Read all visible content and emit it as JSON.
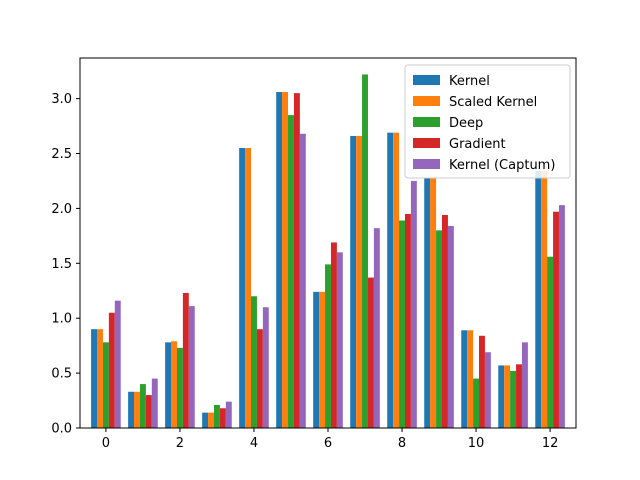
{
  "chart_data": {
    "type": "bar",
    "title": "",
    "xlabel": "",
    "ylabel": "",
    "categories": [
      0,
      1,
      2,
      3,
      4,
      5,
      6,
      7,
      8,
      9,
      10,
      11,
      12
    ],
    "xticks": [
      0,
      2,
      4,
      6,
      8,
      10,
      12
    ],
    "yticks": [
      0.0,
      0.5,
      1.0,
      1.5,
      2.0,
      2.5,
      3.0
    ],
    "xlim": [
      -0.7,
      12.7
    ],
    "ylim": [
      0,
      3.37
    ],
    "grid": false,
    "legend_position": "top-right",
    "series": [
      {
        "name": "Kernel",
        "color": "#1f77b4",
        "values": [
          0.9,
          0.33,
          0.78,
          0.14,
          2.55,
          3.06,
          1.24,
          2.66,
          2.69,
          2.28,
          0.89,
          0.57,
          2.34
        ]
      },
      {
        "name": "Scaled Kernel",
        "color": "#ff7f0e",
        "values": [
          0.9,
          0.33,
          0.79,
          0.14,
          2.55,
          3.06,
          1.24,
          2.66,
          2.69,
          2.28,
          0.89,
          0.57,
          2.34
        ]
      },
      {
        "name": "Deep",
        "color": "#2ca02c",
        "values": [
          0.78,
          0.4,
          0.73,
          0.21,
          1.2,
          2.85,
          1.49,
          3.22,
          1.89,
          1.8,
          0.45,
          0.52,
          1.56
        ]
      },
      {
        "name": "Gradient",
        "color": "#d62728",
        "values": [
          1.05,
          0.3,
          1.23,
          0.18,
          0.9,
          3.05,
          1.69,
          1.37,
          1.95,
          1.94,
          0.84,
          0.58,
          1.97
        ]
      },
      {
        "name": "Kernel (Captum)",
        "color": "#9467bd",
        "values": [
          1.16,
          0.45,
          1.11,
          0.24,
          1.1,
          2.68,
          1.6,
          1.82,
          2.25,
          1.84,
          0.69,
          0.78,
          2.03
        ]
      }
    ]
  }
}
